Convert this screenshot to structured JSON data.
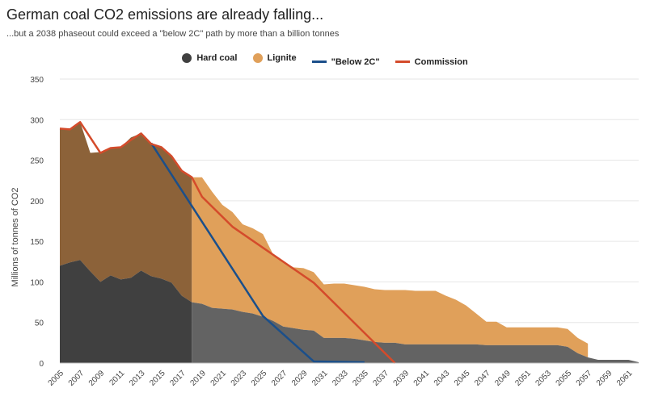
{
  "chart_data": {
    "type": "area",
    "title": "German coal CO2 emissions are already falling...",
    "subtitle": "...but a 2038 phaseout could exceed a \"below 2C\" path by more than a billion tonnes",
    "ylabel": "Millions of tonnes of CO2",
    "xlabel": "",
    "ylim": [
      0,
      350
    ],
    "xlim": [
      2005,
      2062
    ],
    "yticks": [
      "0",
      "50",
      "100",
      "150",
      "200",
      "250",
      "300",
      "350"
    ],
    "xticks": [
      "2005",
      "2007",
      "2009",
      "2011",
      "2013",
      "2015",
      "2017",
      "2019",
      "2021",
      "2023",
      "2025",
      "2027",
      "2029",
      "2031",
      "2033",
      "2035",
      "2037",
      "2039",
      "2041",
      "2043",
      "2045",
      "2047",
      "2049",
      "2051",
      "2053",
      "2055",
      "2057",
      "2059",
      "2061"
    ],
    "grid": true,
    "legend_position": "top-center",
    "historical_end": 2018,
    "series": [
      {
        "name": "Hard coal",
        "kind": "area",
        "color": "#404040",
        "x": [
          2005,
          2006,
          2007,
          2008,
          2009,
          2010,
          2011,
          2012,
          2013,
          2014,
          2015,
          2016,
          2017,
          2018,
          2019,
          2020,
          2021,
          2022,
          2023,
          2024,
          2025,
          2026,
          2027,
          2028,
          2029,
          2030,
          2031,
          2032,
          2033,
          2034,
          2035,
          2036,
          2037,
          2038,
          2039,
          2040,
          2041,
          2042,
          2043,
          2044,
          2045,
          2046,
          2047,
          2048,
          2049,
          2050,
          2051,
          2052,
          2053,
          2054,
          2055,
          2056,
          2057,
          2058,
          2059,
          2060,
          2061,
          2062
        ],
        "values": [
          120,
          124,
          127,
          113,
          100,
          108,
          103,
          105,
          114,
          107,
          104,
          99,
          83,
          75,
          73,
          68,
          67,
          66,
          63,
          61,
          57,
          52,
          45,
          43,
          41,
          40,
          31,
          31,
          31,
          30,
          28,
          26,
          25,
          25,
          23,
          23,
          23,
          23,
          23,
          23,
          23,
          23,
          22,
          22,
          22,
          22,
          22,
          22,
          22,
          22,
          20,
          12,
          7,
          4,
          4,
          4,
          4,
          1
        ]
      },
      {
        "name": "Lignite",
        "kind": "area",
        "color": "#e0a05a",
        "x": [
          2005,
          2006,
          2007,
          2008,
          2009,
          2010,
          2011,
          2012,
          2013,
          2014,
          2015,
          2016,
          2017,
          2018,
          2019,
          2020,
          2021,
          2022,
          2023,
          2024,
          2025,
          2026,
          2027,
          2028,
          2029,
          2030,
          2031,
          2032,
          2033,
          2034,
          2035,
          2036,
          2037,
          2038,
          2039,
          2040,
          2041,
          2042,
          2043,
          2044,
          2045,
          2046,
          2047,
          2048,
          2049,
          2050,
          2051,
          2052,
          2053,
          2054,
          2055,
          2056,
          2057
        ],
        "values": [
          168,
          164,
          170,
          146,
          160,
          156,
          163,
          173,
          169,
          163,
          162,
          156,
          153,
          154,
          156,
          143,
          128,
          120,
          108,
          105,
          102,
          82,
          80,
          75,
          76,
          72,
          66,
          67,
          67,
          66,
          66,
          65,
          65,
          65,
          67,
          66,
          66,
          66,
          60,
          55,
          48,
          38,
          29,
          29,
          22,
          22,
          22,
          22,
          22,
          22,
          22,
          19,
          17
        ]
      },
      {
        "name": "\"Below 2C\"",
        "kind": "line",
        "color": "#1b4f8a",
        "x": [
          2014,
          2025,
          2030,
          2035
        ],
        "values": [
          271,
          58,
          2,
          1
        ]
      },
      {
        "name": "Commission",
        "kind": "line",
        "color": "#d44b2b",
        "x": [
          2005,
          2006,
          2007,
          2008,
          2009,
          2010,
          2011,
          2012,
          2013,
          2014,
          2015,
          2016,
          2017,
          2018,
          2019,
          2022,
          2030,
          2038
        ],
        "values": [
          289,
          288,
          297,
          278,
          259,
          265,
          266,
          275,
          283,
          270,
          266,
          255,
          237,
          229,
          205,
          168,
          99,
          0
        ]
      }
    ]
  },
  "legend": [
    {
      "label": "Hard coal",
      "color": "#404040",
      "shape": "dot"
    },
    {
      "label": "Lignite",
      "color": "#e0a05a",
      "shape": "dot"
    },
    {
      "label": "\"Below 2C\"",
      "color": "#1b4f8a",
      "shape": "line"
    },
    {
      "label": "Commission",
      "color": "#d44b2b",
      "shape": "line"
    }
  ]
}
